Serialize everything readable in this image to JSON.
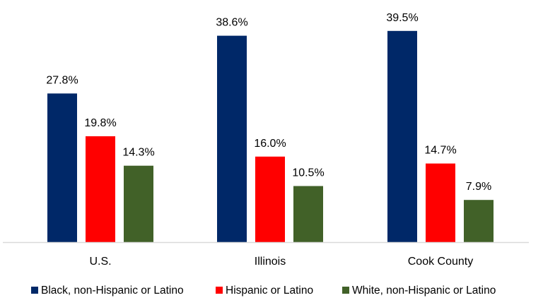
{
  "chart_data": {
    "type": "bar",
    "categories": [
      "U.S.",
      "Illinois",
      "Cook County"
    ],
    "series": [
      {
        "name": "Black, non-Hispanic or Latino",
        "values": [
          27.8,
          38.6,
          39.5
        ],
        "labels": [
          "27.8%",
          "38.6%",
          "39.5%"
        ],
        "color": "#002868"
      },
      {
        "name": "Hispanic or Latino",
        "values": [
          19.8,
          16.0,
          14.7
        ],
        "labels": [
          "19.8%",
          "16.0%",
          "14.7%"
        ],
        "color": "#ff0000"
      },
      {
        "name": "White, non-Hispanic or Latino",
        "values": [
          14.3,
          10.5,
          7.9
        ],
        "labels": [
          "14.3%",
          "10.5%",
          "7.9%"
        ],
        "color": "#416128"
      }
    ],
    "ylim": [
      0,
      40
    ],
    "grid": false,
    "legend_position": "bottom"
  }
}
